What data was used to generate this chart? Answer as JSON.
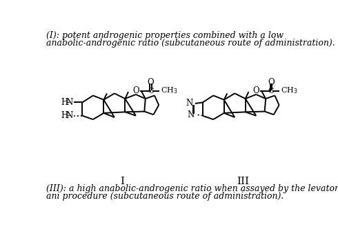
{
  "bg_color": "#ffffff",
  "text_top_line1": "(I): potent androgenic properties combined with a low",
  "text_top_line2": "anabolic-androgenic ratio (subcutaneous route of administration).",
  "text_bot_line1": "(III): a high anabolic-androgenic ratio when assayed by the levator",
  "text_bot_line2": "ani procedure (subcutaneous route of administration).",
  "label_I": "I",
  "label_III": "III",
  "font_size_text": 9.0,
  "font_size_label": 11,
  "lw": 1.4
}
